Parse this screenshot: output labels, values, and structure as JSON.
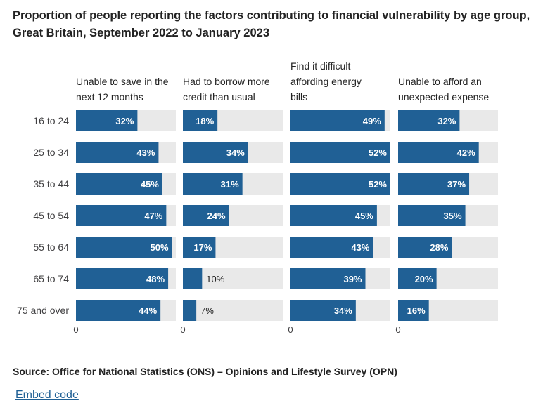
{
  "title": "Proportion of people reporting the factors contributing to financial vulnerability by age group, Great Britain, September 2022 to January 2023",
  "source": "Source: Office for National Statistics (ONS) – Opinions and Lifestyle Survey (OPN)",
  "embed_label": "Embed code",
  "colors": {
    "bar": "#206095",
    "track": "#e9e9e9",
    "label_inside": "#ffffff",
    "label_outside": "#222222"
  },
  "chart_data": {
    "type": "bar",
    "orientation": "horizontal",
    "layout": "small-multiples",
    "categories": [
      "16 to 24",
      "25 to 34",
      "35 to 44",
      "45 to 54",
      "55 to 64",
      "65 to 74",
      "75 and over"
    ],
    "xlim": [
      0,
      52
    ],
    "x_tick_labels": [
      "0"
    ],
    "grid": false,
    "value_suffix": "%",
    "panels": [
      {
        "title_lines": [
          "Unable to save in the",
          "next 12 months"
        ],
        "values": [
          32,
          43,
          45,
          47,
          50,
          48,
          44
        ]
      },
      {
        "title_lines": [
          "Had to borrow more",
          "credit than usual"
        ],
        "values": [
          18,
          34,
          31,
          24,
          17,
          10,
          7
        ]
      },
      {
        "title_lines": [
          "Find it difficult",
          "affording energy",
          "bills"
        ],
        "values": [
          49,
          52,
          52,
          45,
          43,
          39,
          34
        ]
      },
      {
        "title_lines": [
          "Unable to afford an",
          "unexpected expense"
        ],
        "values": [
          32,
          42,
          37,
          35,
          28,
          20,
          16
        ]
      }
    ]
  }
}
